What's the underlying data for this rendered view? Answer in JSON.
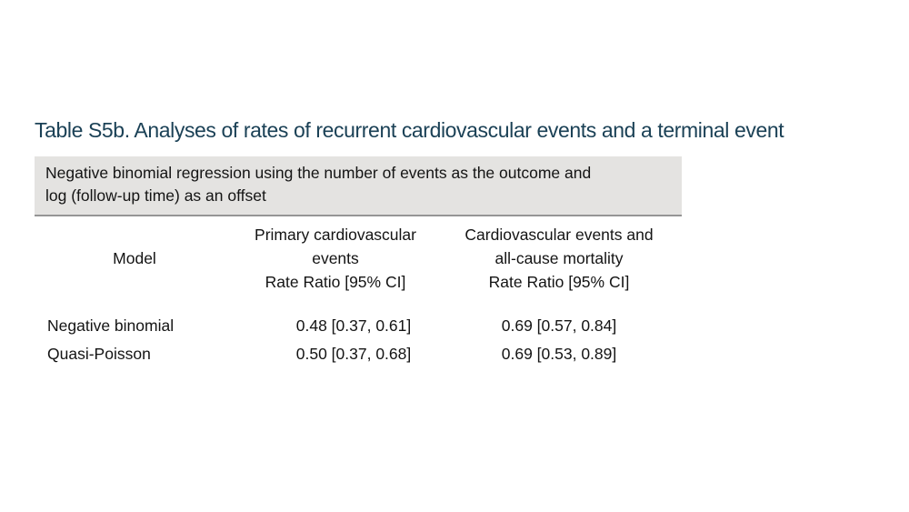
{
  "page": {
    "title": "Table S5b. Analyses of rates of recurrent cardiovascular events and a terminal event",
    "title_color": "#1b4156"
  },
  "note_box": {
    "background_color": "#e4e3e1",
    "border_bottom_color": "#959595",
    "lines": [
      "Negative binomial regression using the number of events as the outcome and",
      "log (follow-up time) as an offset"
    ]
  },
  "table": {
    "columns": [
      {
        "id": "model",
        "header_lines": [
          "Model"
        ]
      },
      {
        "id": "primary_cv_events",
        "header_lines": [
          "Primary cardiovascular",
          "events",
          "Rate Ratio [95% CI]"
        ]
      },
      {
        "id": "cv_events_all_cause_mortality",
        "header_lines": [
          "Cardiovascular events and",
          "all-cause mortality",
          "Rate Ratio [95% CI]"
        ]
      }
    ],
    "rows": [
      {
        "model": "Negative binomial",
        "primary": "0.48 [0.37, 0.61]",
        "combined": "0.69 [0.57, 0.84]"
      },
      {
        "model": "Quasi-Poisson",
        "primary": "0.50 [0.37, 0.68]",
        "combined": "0.69 [0.53, 0.89]"
      }
    ]
  }
}
